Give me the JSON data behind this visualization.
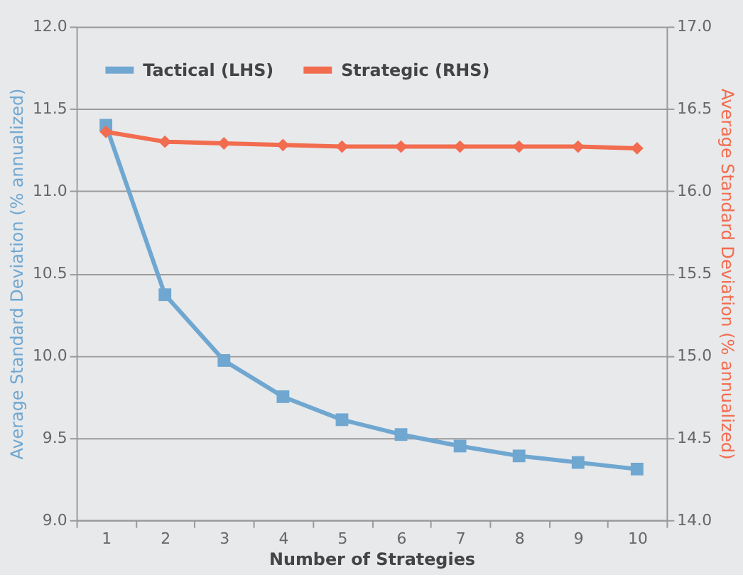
{
  "chart_data": {
    "type": "line",
    "xlabel": "Number of Strategies",
    "ylabel": "Average Standard Deviation (% annualized)",
    "y2label": "Average Standard Deviation (% annualized)",
    "categories": [
      "1",
      "2",
      "3",
      "4",
      "5",
      "6",
      "7",
      "8",
      "9",
      "10"
    ],
    "series": [
      {
        "name": "Tactical (LHS)",
        "color": "#6fa7d1",
        "marker": "square",
        "values": [
          11.4,
          10.37,
          9.97,
          9.75,
          9.61,
          9.52,
          9.45,
          9.39,
          9.35,
          9.31
        ]
      },
      {
        "name": "Strategic (RHS)",
        "color": "#f26c4f",
        "marker": "diamond",
        "axis": "y2",
        "values": [
          16.36,
          16.3,
          16.29,
          16.28,
          16.27,
          16.27,
          16.27,
          16.27,
          16.27,
          16.26
        ]
      }
    ],
    "ylim": [
      9.0,
      12.0
    ],
    "yticks": [
      {
        "value": 9.0,
        "label": "9.0"
      },
      {
        "value": 9.5,
        "label": "9.5"
      },
      {
        "value": 10.0,
        "label": "10.0"
      },
      {
        "value": 10.5,
        "label": "10.5"
      },
      {
        "value": 11.0,
        "label": "11.0"
      },
      {
        "value": 11.5,
        "label": "11.5"
      },
      {
        "value": 12.0,
        "label": "12.0"
      }
    ],
    "y2lim": [
      14.0,
      17.0
    ],
    "y2ticks": [
      {
        "value": 14.0,
        "label": "14.0"
      },
      {
        "value": 14.5,
        "label": "14.5"
      },
      {
        "value": 15.0,
        "label": "15.0"
      },
      {
        "value": 15.5,
        "label": "15.5"
      },
      {
        "value": 16.0,
        "label": "16.0"
      },
      {
        "value": 16.5,
        "label": "16.5"
      },
      {
        "value": 17.0,
        "label": "17.0"
      }
    ],
    "grid": "y",
    "legend": "top left",
    "line_style": "solid"
  }
}
